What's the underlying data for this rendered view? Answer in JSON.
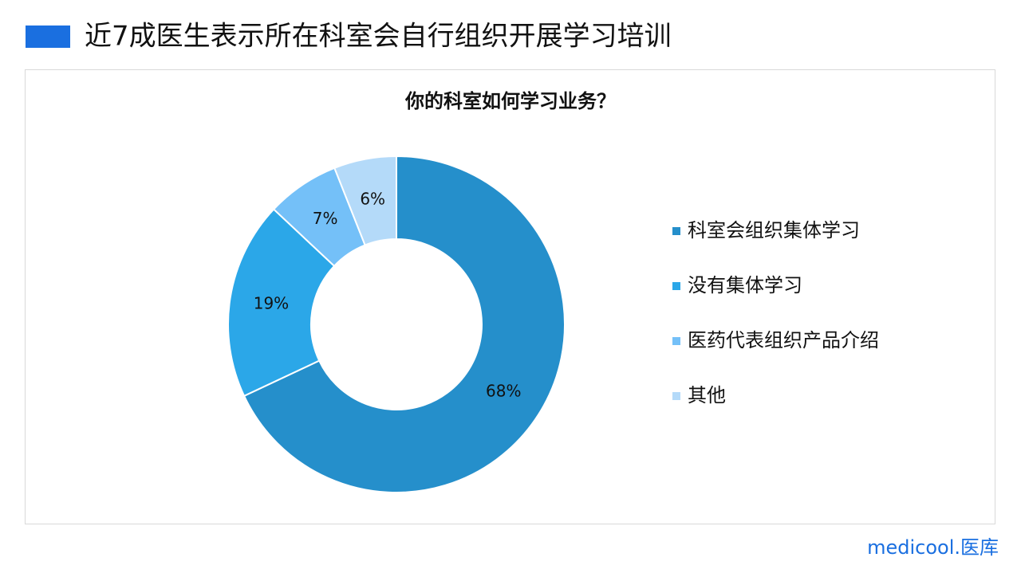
{
  "slide_title": "近7成医生表示所在科室会自行组织开展学习培训",
  "logo": "medicool.医库",
  "chart_data": {
    "type": "donut",
    "title": "你的科室如何学习业务？",
    "categories": [
      "科室会组织集体学习",
      "没有集体学习",
      "医药代表组织产品介绍",
      "其他"
    ],
    "values": [
      68,
      19,
      7,
      6
    ],
    "value_labels": [
      "68%",
      "19%",
      "7%",
      "6%"
    ],
    "colors": [
      "#258fcb",
      "#2ba7e8",
      "#74c0f8",
      "#b4daf9"
    ],
    "legend": "right"
  }
}
